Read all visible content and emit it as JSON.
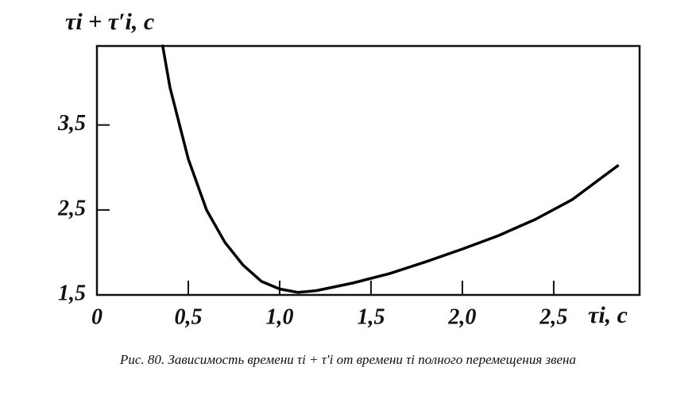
{
  "chart_data": {
    "type": "line",
    "y_label": "τi + τ′i, c",
    "x_label": "τi, c",
    "caption": "Рис. 80. Зависимость времени τi + τ′i от времени τi полного перемещения звена",
    "x": [
      0.36,
      0.4,
      0.5,
      0.6,
      0.7,
      0.8,
      0.9,
      1.0,
      1.1,
      1.2,
      1.4,
      1.6,
      1.8,
      2.0,
      2.2,
      2.4,
      2.6,
      2.85
    ],
    "series": [
      {
        "color": "#000000",
        "values": [
          4.43,
          3.94,
          3.1,
          2.5,
          2.12,
          1.85,
          1.66,
          1.57,
          1.53,
          1.55,
          1.64,
          1.75,
          1.89,
          2.04,
          2.2,
          2.39,
          2.62,
          3.02
        ]
      }
    ],
    "xlim": [
      0,
      2.97
    ],
    "ylim": [
      1.5,
      4.43
    ],
    "xticks": [
      0,
      {
        "value": 0.5,
        "label": "0,5"
      },
      {
        "value": 1,
        "label": "1,0"
      },
      {
        "value": 1.5,
        "label": "1,5"
      },
      {
        "value": 2,
        "label": "2,0"
      },
      {
        "value": 2.5,
        "label": "2,5"
      }
    ],
    "yticks": [
      {
        "value": 1.5,
        "label": "1,5"
      },
      {
        "value": 2.5,
        "label": "2,5"
      },
      {
        "value": 3.5,
        "label": "3,5"
      }
    ]
  }
}
